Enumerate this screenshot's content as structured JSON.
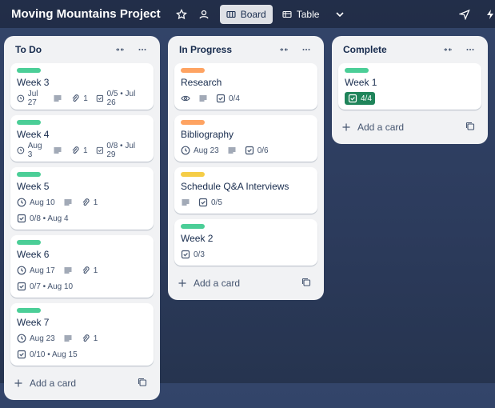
{
  "header": {
    "title": "Moving Mountains Project",
    "views": [
      "Board",
      "Table"
    ]
  },
  "lists": [
    {
      "title": "To Do",
      "add": "Add a card",
      "cards": [
        {
          "title": "Week 3",
          "label_color": "#4bce97",
          "badge_rows": [
            [
              {
                "type": "due",
                "text": "Jul 27"
              },
              {
                "type": "description"
              },
              {
                "type": "attachments",
                "text": "1"
              },
              {
                "type": "checklist",
                "text": "0/5 • Jul 26"
              }
            ]
          ]
        },
        {
          "title": "Week 4",
          "label_color": "#4bce97",
          "badge_rows": [
            [
              {
                "type": "due",
                "text": "Aug 3"
              },
              {
                "type": "description"
              },
              {
                "type": "attachments",
                "text": "1"
              },
              {
                "type": "checklist",
                "text": "0/8 • Jul 29"
              }
            ]
          ]
        },
        {
          "title": "Week 5",
          "label_color": "#4bce97",
          "badge_rows": [
            [
              {
                "type": "due",
                "text": "Aug 10"
              },
              {
                "type": "description"
              },
              {
                "type": "attachments",
                "text": "1"
              }
            ],
            [
              {
                "type": "checklist",
                "text": "0/8 • Aug 4"
              }
            ]
          ]
        },
        {
          "title": "Week 6",
          "label_color": "#4bce97",
          "badge_rows": [
            [
              {
                "type": "due",
                "text": "Aug 17"
              },
              {
                "type": "description"
              },
              {
                "type": "attachments",
                "text": "1"
              }
            ],
            [
              {
                "type": "checklist",
                "text": "0/7 • Aug 10"
              }
            ]
          ]
        },
        {
          "title": "Week 7",
          "label_color": "#4bce97",
          "badge_rows": [
            [
              {
                "type": "due",
                "text": "Aug 23"
              },
              {
                "type": "description"
              },
              {
                "type": "attachments",
                "text": "1"
              }
            ],
            [
              {
                "type": "checklist",
                "text": "0/10 • Aug 15"
              }
            ]
          ]
        }
      ]
    },
    {
      "title": "In Progress",
      "add": "Add a card",
      "cards": [
        {
          "title": "Research",
          "label_color": "#fea362",
          "badge_rows": [
            [
              {
                "type": "watch"
              },
              {
                "type": "description"
              },
              {
                "type": "checklist",
                "text": "0/4"
              }
            ]
          ]
        },
        {
          "title": "Bibliography",
          "label_color": "#fea362",
          "badge_rows": [
            [
              {
                "type": "due",
                "text": "Aug 23"
              },
              {
                "type": "description"
              },
              {
                "type": "checklist",
                "text": "0/6"
              }
            ]
          ]
        },
        {
          "title": "Schedule Q&A Interviews",
          "label_color": "#f5cd47",
          "badge_rows": [
            [
              {
                "type": "description"
              },
              {
                "type": "checklist",
                "text": "0/5"
              }
            ]
          ]
        },
        {
          "title": "Week 2",
          "label_color": "#4bce97",
          "badge_rows": [
            [
              {
                "type": "checklist",
                "text": "0/3"
              }
            ]
          ]
        }
      ]
    },
    {
      "title": "Complete",
      "add": "Add a card",
      "cards": [
        {
          "title": "Week 1",
          "label_color": "#4bce97",
          "badge_rows": [
            [
              {
                "type": "checklist-complete",
                "text": "4/4"
              }
            ]
          ]
        }
      ]
    }
  ]
}
